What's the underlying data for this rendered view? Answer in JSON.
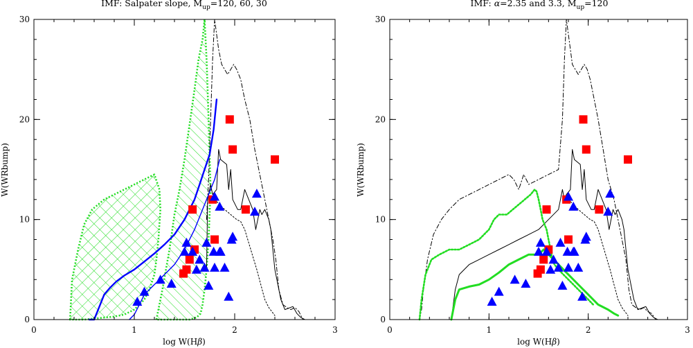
{
  "chart_data": [
    {
      "type": "scatter",
      "title": "IMF: Salpater slope, M_up=120, 60, 30",
      "title_parts": {
        "pre": "IMF: Salpater slope, M",
        "sub": "up",
        "post": "=120, 60, 30"
      },
      "xlabel_parts": {
        "pre": "log W(H",
        "greek": "β",
        "post": ")"
      },
      "ylabel": "W(WRbump)",
      "xlim": [
        0,
        3
      ],
      "ylim": [
        0,
        30
      ],
      "xticks": [
        "0",
        "1",
        "2",
        "3"
      ],
      "yticks": [
        "0",
        "10",
        "20",
        "30"
      ],
      "series": [
        {
          "marker": "square",
          "color": "#ff0000",
          "x": [
            1.95,
            1.98,
            2.4,
            1.78,
            2.11,
            1.58,
            1.8,
            1.6,
            1.55,
            1.52,
            1.49
          ],
          "y": [
            20,
            17,
            16,
            12,
            11,
            11,
            8,
            7,
            6,
            5,
            4.6
          ]
        },
        {
          "marker": "triangle",
          "color": "#0000ff",
          "x": [
            1.8,
            2.22,
            1.85,
            2.2,
            1.98,
            1.97,
            1.52,
            1.72,
            1.85,
            1.5,
            1.58,
            1.79,
            1.86,
            1.65,
            1.7,
            1.8,
            1.9,
            1.62,
            1.26,
            1.37,
            1.74,
            1.1,
            1.03,
            1.94
          ],
          "y": [
            12.3,
            12.6,
            11.3,
            10.8,
            8.3,
            8.0,
            7.7,
            7.7,
            6.8,
            6.8,
            6.8,
            6.8,
            6.8,
            6.0,
            5.2,
            5.2,
            5.2,
            5.0,
            4.0,
            3.6,
            3.4,
            2.8,
            1.8,
            2.3
          ]
        }
      ],
      "curves": [
        {
          "color": "#000000",
          "style": "solid",
          "x": [
            1.72,
            1.73,
            1.76,
            1.78,
            1.82,
            1.84,
            1.86,
            1.92,
            1.94,
            1.96,
            1.98,
            2.03,
            2.06,
            2.1,
            2.18,
            2.21,
            2.25,
            2.27,
            2.3,
            2.34,
            2.36,
            2.38,
            2.4,
            2.46,
            2.5,
            2.58,
            2.62,
            2.66,
            2.7
          ],
          "y": [
            5.0,
            12.0,
            13.5,
            12.5,
            13.0,
            17.0,
            16.0,
            15.5,
            13.0,
            15.0,
            12.0,
            11.0,
            11.0,
            13.0,
            11.0,
            9.0,
            11.0,
            10.5,
            11.0,
            10.0,
            9.0,
            7.0,
            5.0,
            2.0,
            1.0,
            1.3,
            0.6,
            0.2,
            0.0
          ]
        },
        {
          "color": "#000000",
          "style": "dashdot",
          "x": [
            1.72,
            1.74,
            1.76,
            1.78,
            1.8,
            1.82,
            1.84,
            1.87,
            1.9,
            1.93,
            1.96,
            1.99,
            2.02,
            2.06,
            2.1,
            2.15,
            2.2,
            2.26,
            2.3,
            2.34,
            2.38,
            2.41,
            2.44,
            2.48,
            2.52,
            2.56,
            2.6,
            2.64,
            2.68
          ],
          "y": [
            10.0,
            14.0,
            20.0,
            26.0,
            30.0,
            28.5,
            27.0,
            25.5,
            25.0,
            24.5,
            25.0,
            25.5,
            25.0,
            24.0,
            22.0,
            20.0,
            17.0,
            14.0,
            12.0,
            10.0,
            8.0,
            6.0,
            3.0,
            1.5,
            1.2,
            1.0,
            1.2,
            0.8,
            0.0
          ]
        },
        {
          "color": "#000000",
          "style": "dotted",
          "x": [
            1.8,
            1.85,
            1.9,
            1.96,
            2.02,
            2.06,
            2.1,
            2.16,
            2.22,
            2.26,
            2.3,
            2.34,
            2.4
          ],
          "y": [
            12.0,
            11.5,
            11.0,
            10.5,
            10.0,
            9.8,
            9.0,
            7.0,
            5.0,
            3.5,
            2.0,
            1.2,
            0.4
          ]
        },
        {
          "color": "#0000ff",
          "style": "solid",
          "width": 2.4,
          "x": [
            0.55,
            0.6,
            0.62,
            0.66,
            0.7,
            0.76,
            0.82,
            0.9,
            1.0,
            1.1,
            1.2,
            1.3,
            1.4,
            1.5,
            1.6,
            1.65,
            1.7,
            1.75,
            1.79,
            1.82
          ],
          "y": [
            0.0,
            0.0,
            0.5,
            1.5,
            2.5,
            3.2,
            3.8,
            4.4,
            5.0,
            5.8,
            6.6,
            7.5,
            8.5,
            10.0,
            12.0,
            13.5,
            15.0,
            16.5,
            19.0,
            22.0
          ]
        },
        {
          "color": "#0000ff",
          "style": "solid",
          "width": 1.4,
          "x": [
            0.95,
            1.0,
            1.05,
            1.1,
            1.2,
            1.3,
            1.4,
            1.5,
            1.6,
            1.7,
            1.8,
            1.85
          ],
          "y": [
            0.0,
            0.5,
            1.5,
            2.5,
            3.5,
            4.5,
            5.5,
            7.0,
            9.0,
            11.5,
            14.0,
            16.0
          ]
        }
      ],
      "regions": [
        {
          "color": "#22dd22",
          "style": "dotted",
          "width": 2.6,
          "hatch": "cross",
          "x": [
            0.36,
            0.38,
            0.44,
            0.5,
            0.58,
            0.7,
            0.8,
            0.9,
            1.0,
            1.1,
            1.2,
            1.25,
            1.26,
            1.24,
            1.22,
            1.2,
            1.15,
            1.1,
            1.0,
            0.9,
            0.8,
            0.7,
            0.6,
            0.5,
            0.44,
            0.4,
            0.38
          ],
          "y": [
            0.0,
            4.0,
            7.0,
            9.5,
            11.0,
            12.0,
            12.5,
            13.0,
            13.5,
            14.0,
            14.5,
            13.0,
            11.0,
            8.0,
            6.0,
            4.5,
            3.0,
            2.0,
            1.0,
            0.5,
            0.3,
            0.2,
            0.1,
            0.0,
            0.0,
            0.0,
            0.0
          ]
        },
        {
          "color": "#22dd22",
          "style": "dotted",
          "width": 2.6,
          "hatch": "diag",
          "x": [
            1.22,
            1.28,
            1.35,
            1.4,
            1.45,
            1.5,
            1.55,
            1.6,
            1.64,
            1.68,
            1.7,
            1.72,
            1.74,
            1.76,
            1.74,
            1.72,
            1.7,
            1.68,
            1.66,
            1.62,
            1.58,
            1.55,
            1.5,
            1.45,
            1.4,
            1.35,
            1.3,
            1.25
          ],
          "y": [
            0.0,
            3.0,
            7.0,
            10.5,
            13.0,
            16.0,
            19.5,
            23.0,
            26.0,
            28.0,
            30.0,
            26.0,
            20.0,
            13.0,
            8.0,
            5.0,
            3.0,
            1.5,
            0.6,
            0.2,
            0.1,
            0.0,
            0.0,
            0.0,
            0.0,
            0.0,
            0.0,
            0.0
          ]
        }
      ]
    },
    {
      "type": "scatter",
      "title": "IMF: α=2.35 and 3.3, M_up=120",
      "title_parts": {
        "pre": "IMF: ",
        "greek": "α",
        "mid": "=2.35 and 3.3, M",
        "sub": "up",
        "post": "=120"
      },
      "xlabel_parts": {
        "pre": "log W(H",
        "greek": "β",
        "post": ")"
      },
      "ylabel": "W(WRbump)",
      "xlim": [
        0,
        3
      ],
      "ylim": [
        0,
        30
      ],
      "xticks": [
        "0",
        "1",
        "2",
        "3"
      ],
      "yticks": [
        "0",
        "10",
        "20",
        "30"
      ],
      "series": [
        {
          "marker": "square",
          "color": "#ff0000",
          "x": [
            1.95,
            1.98,
            2.4,
            1.78,
            2.11,
            1.58,
            1.8,
            1.6,
            1.55,
            1.52,
            1.49
          ],
          "y": [
            20,
            17,
            16,
            12,
            11,
            11,
            8,
            7,
            6,
            5,
            4.6
          ]
        },
        {
          "marker": "triangle",
          "color": "#0000ff",
          "x": [
            1.8,
            2.22,
            1.85,
            2.2,
            1.98,
            1.97,
            1.52,
            1.72,
            1.85,
            1.5,
            1.58,
            1.79,
            1.86,
            1.65,
            1.7,
            1.8,
            1.9,
            1.62,
            1.26,
            1.37,
            1.74,
            1.1,
            1.03,
            1.94
          ],
          "y": [
            12.3,
            12.6,
            11.3,
            10.8,
            8.3,
            8.0,
            7.7,
            7.7,
            6.8,
            6.8,
            6.8,
            6.8,
            6.8,
            6.0,
            5.2,
            5.2,
            5.2,
            5.0,
            4.0,
            3.6,
            3.4,
            2.8,
            1.8,
            2.3
          ]
        }
      ],
      "curves": [
        {
          "color": "#000000",
          "style": "solid",
          "x": [
            0.62,
            0.66,
            0.7,
            0.8,
            0.9,
            1.0,
            1.1,
            1.2,
            1.3,
            1.4,
            1.5,
            1.6,
            1.7,
            1.74,
            1.76,
            1.78,
            1.82,
            1.84,
            1.86,
            1.92,
            1.94,
            1.96,
            1.98,
            2.03,
            2.06,
            2.1,
            2.18,
            2.21,
            2.25,
            2.27,
            2.3,
            2.34,
            2.36,
            2.38,
            2.4,
            2.46,
            2.5,
            2.58,
            2.62,
            2.66,
            2.7
          ],
          "y": [
            0.0,
            3.0,
            4.5,
            5.5,
            6.0,
            6.5,
            7.0,
            7.5,
            8.0,
            8.5,
            9.0,
            10.0,
            11.0,
            13.0,
            12.0,
            12.5,
            13.0,
            17.0,
            16.0,
            15.5,
            13.0,
            15.0,
            12.0,
            11.0,
            11.0,
            13.0,
            11.0,
            9.0,
            11.0,
            10.5,
            11.0,
            10.0,
            9.0,
            7.0,
            5.0,
            2.0,
            1.0,
            1.3,
            0.6,
            0.2,
            0.0
          ]
        },
        {
          "color": "#000000",
          "style": "dashdot",
          "x": [
            0.3,
            0.32,
            0.34,
            0.38,
            0.44,
            0.52,
            0.6,
            0.7,
            0.8,
            0.9,
            1.0,
            1.1,
            1.2,
            1.25,
            1.3,
            1.35,
            1.4,
            1.5,
            1.6,
            1.7,
            1.74,
            1.76,
            1.78,
            1.8,
            1.82,
            1.84,
            1.87,
            1.9,
            1.93,
            1.96,
            1.99,
            2.02,
            2.06,
            2.1,
            2.15,
            2.2,
            2.26,
            2.3,
            2.34,
            2.38,
            2.41,
            2.44,
            2.48,
            2.52,
            2.56,
            2.6,
            2.64,
            2.68
          ],
          "y": [
            0.0,
            1.0,
            3.0,
            6.0,
            8.5,
            10.0,
            11.0,
            12.0,
            12.5,
            13.0,
            13.5,
            14.0,
            14.5,
            14.0,
            13.0,
            14.5,
            13.5,
            14.0,
            14.5,
            15.0,
            20.0,
            26.0,
            30.0,
            28.5,
            27.0,
            25.5,
            25.0,
            24.5,
            25.0,
            25.5,
            25.0,
            24.0,
            22.0,
            20.0,
            17.0,
            14.0,
            12.0,
            10.0,
            8.0,
            6.0,
            3.0,
            1.5,
            1.2,
            1.0,
            1.2,
            0.8,
            0.6,
            0.0
          ]
        },
        {
          "color": "#000000",
          "style": "dotted",
          "x": [
            1.8,
            1.85,
            1.9,
            1.96,
            2.02,
            2.06,
            2.1,
            2.16,
            2.22,
            2.26,
            2.3,
            2.34,
            2.4
          ],
          "y": [
            12.0,
            11.5,
            11.0,
            10.5,
            10.0,
            9.8,
            9.0,
            7.0,
            5.0,
            3.5,
            2.0,
            1.2,
            0.4
          ]
        },
        {
          "color": "#22dd22",
          "style": "solid",
          "width": 3,
          "x": [
            0.62,
            0.64,
            0.66,
            0.7,
            0.8,
            0.9,
            1.0,
            1.1,
            1.2,
            1.3,
            1.4,
            1.5,
            1.55,
            1.6,
            1.7,
            1.8,
            1.9,
            2.0,
            2.1,
            2.2,
            2.26,
            2.3
          ],
          "y": [
            0.0,
            1.0,
            2.0,
            3.0,
            3.3,
            3.5,
            4.0,
            4.7,
            5.5,
            6.0,
            6.5,
            6.5,
            7.0,
            6.5,
            5.5,
            4.5,
            3.5,
            2.5,
            1.5,
            1.0,
            0.6,
            0.4
          ]
        },
        {
          "color": "#22dd22",
          "style": "dotted",
          "width": 2.6,
          "x": [
            0.3,
            0.32,
            0.36,
            0.42,
            0.5,
            0.6,
            0.7,
            0.8,
            0.9,
            1.0,
            1.05,
            1.1,
            1.18,
            1.24,
            1.3,
            1.36,
            1.42,
            1.46,
            1.48,
            1.5,
            1.52,
            1.54,
            1.56,
            1.58,
            1.6,
            1.62,
            1.64,
            1.66,
            1.7,
            1.75,
            1.8,
            1.85,
            1.9,
            1.95,
            2.0,
            2.05
          ],
          "y": [
            0.0,
            2.0,
            4.5,
            6.0,
            6.5,
            7.0,
            7.0,
            7.5,
            8.0,
            9.0,
            10.0,
            10.5,
            10.5,
            11.0,
            11.5,
            12.0,
            12.5,
            13.0,
            12.8,
            12.0,
            11.0,
            10.0,
            9.5,
            9.0,
            8.0,
            7.0,
            6.0,
            5.5,
            5.0,
            4.5,
            4.0,
            3.5,
            3.0,
            2.5,
            2.0,
            1.5
          ]
        }
      ],
      "regions": []
    }
  ]
}
